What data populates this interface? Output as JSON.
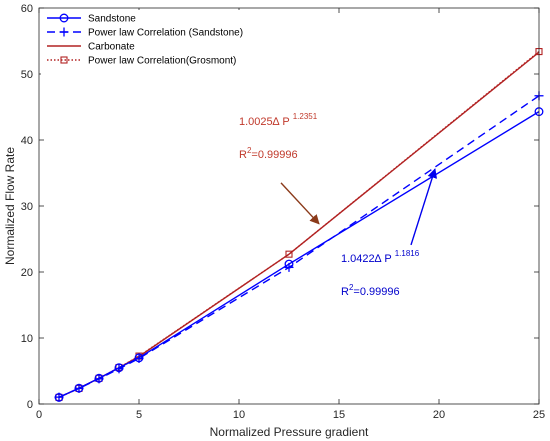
{
  "chart_data": {
    "type": "line",
    "xlabel": "Normalized Pressure gradient",
    "ylabel": "Normalized Flow Rate",
    "xlim": [
      0,
      25
    ],
    "ylim": [
      0,
      60
    ],
    "xticks": [
      "0",
      "5",
      "10",
      "15",
      "20",
      "25"
    ],
    "yticks": [
      "0",
      "10",
      "20",
      "30",
      "40",
      "50",
      "60"
    ],
    "grid": false,
    "legend_position": "top-left",
    "series": [
      {
        "name": "Sandstone",
        "style": "solid-circle",
        "color": "#0000ff",
        "x": [
          1,
          2,
          3,
          4,
          5,
          12.5,
          25
        ],
        "y": [
          1.0,
          2.4,
          3.9,
          5.5,
          7.0,
          21.2,
          44.3
        ]
      },
      {
        "name": "Power law Correlation (Sandstone)",
        "style": "dashed-plus",
        "color": "#0000ff",
        "x": [
          1,
          2,
          3,
          4,
          5,
          12.5,
          25
        ],
        "y": [
          1.04,
          2.36,
          3.81,
          5.33,
          6.9,
          20.7,
          46.7
        ]
      },
      {
        "name": "Carbonate",
        "style": "solid",
        "color": "#b22222",
        "x": [
          1,
          2,
          3,
          4,
          5,
          12.5,
          25
        ],
        "y": [
          1.0,
          2.4,
          3.9,
          5.5,
          7.2,
          22.7,
          53.3
        ]
      },
      {
        "name": "Power law Correlation(Grosmont)",
        "style": "dotted-square",
        "color": "#b22222",
        "x": [
          1,
          2,
          3,
          4,
          5,
          12.5,
          25
        ],
        "y": [
          1.0,
          2.36,
          3.89,
          5.53,
          7.26,
          22.7,
          53.4
        ]
      }
    ],
    "annotations": [
      {
        "id": "carbonate",
        "color": "#c0392b",
        "coef": "1.0025",
        "delta": "∆",
        "base": "P",
        "exponent": "1.2351",
        "r2_prefix": "R",
        "r2_sup": "2",
        "r2_value": "=0.99996",
        "text_at": [
          10.0,
          42.3
        ],
        "r2_at": [
          10.0,
          37.3
        ],
        "arrow_from": [
          12.1,
          33.5
        ],
        "arrow_to": [
          14.0,
          27.3
        ]
      },
      {
        "id": "sandstone",
        "color": "#0000cc",
        "coef": "1.0422",
        "delta": "∆",
        "base": "P",
        "exponent": "1.1816",
        "r2_prefix": "R",
        "r2_sup": "2",
        "r2_value": "=0.99996",
        "text_at": [
          15.1,
          21.5
        ],
        "r2_at": [
          15.1,
          16.5
        ],
        "arrow_from": [
          18.6,
          24.1
        ],
        "arrow_to": [
          19.8,
          35.6
        ]
      }
    ]
  }
}
